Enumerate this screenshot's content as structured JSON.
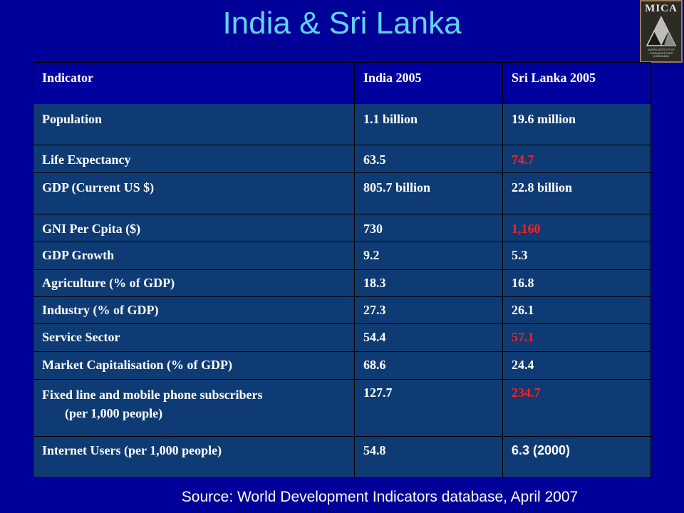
{
  "title": "India & Sri Lanka",
  "logo": {
    "text": "MICA",
    "subtitle": "MUDRA INSTITUTE OF COMMUNICATIONS AHMEDABAD"
  },
  "table": {
    "headers": [
      "Indicator",
      "India  2005",
      "Sri Lanka 2005"
    ],
    "rows": [
      {
        "indicator": "Population",
        "india": "1.1 billion",
        "srilanka": "19.6 million"
      },
      {
        "indicator": "Life Expectancy",
        "india": "63.5",
        "srilanka": "74.7"
      },
      {
        "indicator": "GDP (Current US $)",
        "india": "805.7 billion",
        "srilanka": "22.8 billion"
      },
      {
        "indicator": "GNI Per Cpita ($)",
        "india": "730",
        "srilanka": "1,160"
      },
      {
        "indicator": "GDP Growth",
        "india": "9.2",
        "srilanka": "5.3"
      },
      {
        "indicator": "Agriculture (% of GDP)",
        "india": "18.3",
        "srilanka": "16.8"
      },
      {
        "indicator": "Industry (% of GDP)",
        "india": "27.3",
        "srilanka": "26.1"
      },
      {
        "indicator": "Service Sector",
        "india": "54.4",
        "srilanka": "57.1"
      },
      {
        "indicator": "Market Capitalisation (% of GDP)",
        "india": "68.6",
        "srilanka": "24.4"
      },
      {
        "indicator_line1": "Fixed line and mobile phone subscribers",
        "indicator_line2": "(per 1,000 people)",
        "india": "127.7",
        "srilanka": "234.7"
      },
      {
        "indicator": "Internet Users (per 1,000 people)",
        "india": "54.8",
        "srilanka": "6.3 (2000)"
      }
    ]
  },
  "source": "Source: World Development Indicators database, April 2007",
  "colors": {
    "background": "#000099",
    "title": "#5fd3f5",
    "row_fill": "#0e3b73",
    "highlight": "#ff2020"
  }
}
